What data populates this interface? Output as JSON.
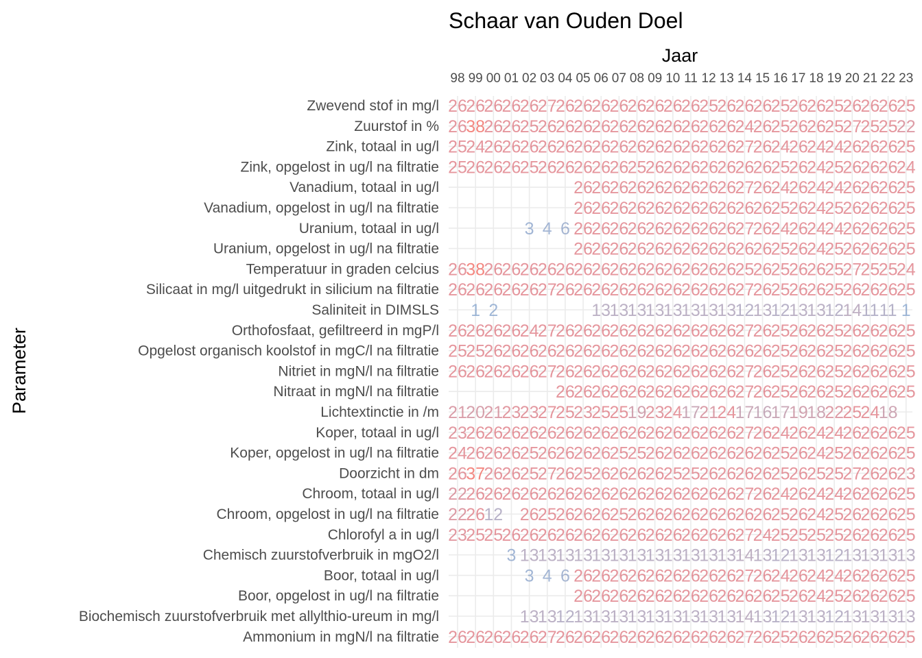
{
  "chart_data": {
    "type": "table",
    "title": "Schaar van Ouden Doel",
    "xlabel": "Jaar",
    "ylabel": "Parameter",
    "columns": [
      "98",
      "99",
      "00",
      "01",
      "02",
      "03",
      "04",
      "05",
      "06",
      "07",
      "08",
      "09",
      "10",
      "11",
      "12",
      "13",
      "14",
      "15",
      "16",
      "17",
      "18",
      "19",
      "20",
      "21",
      "22",
      "23"
    ],
    "color_scale": {
      "low": "#7a9cc9",
      "mid": "#a793ad",
      "high": "#dc6e78",
      "max": "#f05a50"
    },
    "rows": [
      {
        "label": "Zwevend stof in mg/l",
        "values": [
          26,
          26,
          26,
          26,
          26,
          27,
          26,
          26,
          26,
          26,
          26,
          26,
          26,
          26,
          25,
          26,
          26,
          26,
          25,
          26,
          26,
          25,
          26,
          26,
          26,
          25
        ]
      },
      {
        "label": "Zuurstof in %",
        "values": [
          26,
          38,
          26,
          26,
          25,
          26,
          26,
          26,
          26,
          26,
          26,
          26,
          26,
          26,
          26,
          26,
          24,
          26,
          25,
          26,
          26,
          25,
          27,
          25,
          25,
          22
        ]
      },
      {
        "label": "Zink, totaal in ug/l",
        "values": [
          25,
          24,
          26,
          26,
          26,
          26,
          26,
          26,
          26,
          26,
          26,
          26,
          26,
          26,
          26,
          26,
          27,
          26,
          24,
          26,
          24,
          24,
          26,
          26,
          26,
          25
        ]
      },
      {
        "label": "Zink, opgelost in ug/l na filtratie",
        "values": [
          25,
          26,
          26,
          26,
          25,
          26,
          26,
          26,
          26,
          26,
          25,
          26,
          26,
          26,
          26,
          26,
          26,
          26,
          25,
          26,
          24,
          25,
          26,
          26,
          26,
          24
        ]
      },
      {
        "label": "Vanadium, totaal in ug/l",
        "values": [
          null,
          null,
          null,
          null,
          null,
          null,
          null,
          26,
          26,
          26,
          26,
          26,
          26,
          26,
          26,
          26,
          27,
          26,
          24,
          26,
          24,
          24,
          26,
          26,
          26,
          25
        ]
      },
      {
        "label": "Vanadium, opgelost in ug/l na filtratie",
        "values": [
          null,
          null,
          null,
          null,
          null,
          null,
          null,
          26,
          26,
          26,
          26,
          26,
          26,
          26,
          26,
          26,
          26,
          26,
          25,
          26,
          24,
          25,
          26,
          26,
          26,
          25
        ]
      },
      {
        "label": "Uranium, totaal in ug/l",
        "values": [
          null,
          null,
          null,
          null,
          3,
          4,
          6,
          26,
          26,
          26,
          26,
          26,
          26,
          26,
          26,
          26,
          27,
          26,
          24,
          26,
          24,
          24,
          26,
          26,
          26,
          25
        ]
      },
      {
        "label": "Uranium, opgelost in ug/l na filtratie",
        "values": [
          null,
          null,
          null,
          null,
          null,
          null,
          null,
          26,
          26,
          26,
          26,
          26,
          26,
          26,
          26,
          26,
          26,
          26,
          25,
          26,
          24,
          25,
          26,
          26,
          26,
          25
        ]
      },
      {
        "label": "Temperatuur in graden celcius",
        "values": [
          26,
          38,
          26,
          26,
          26,
          26,
          26,
          26,
          26,
          26,
          26,
          26,
          26,
          26,
          26,
          26,
          25,
          26,
          25,
          26,
          26,
          25,
          27,
          25,
          25,
          24
        ]
      },
      {
        "label": "Silicaat in mg/l uitgedrukt in silicium na filtratie",
        "values": [
          26,
          26,
          26,
          26,
          26,
          27,
          26,
          26,
          26,
          26,
          26,
          26,
          26,
          26,
          26,
          26,
          27,
          26,
          25,
          26,
          26,
          25,
          26,
          26,
          26,
          25
        ]
      },
      {
        "label": "Saliniteit in DIMSLS",
        "values": [
          null,
          1,
          2,
          null,
          null,
          null,
          null,
          null,
          13,
          13,
          13,
          13,
          13,
          13,
          13,
          13,
          12,
          13,
          12,
          13,
          13,
          12,
          14,
          11,
          11,
          1
        ]
      },
      {
        "label": "Orthofosfaat, gefiltreerd in mgP/l",
        "values": [
          26,
          26,
          26,
          26,
          24,
          27,
          26,
          26,
          26,
          26,
          26,
          26,
          26,
          26,
          26,
          26,
          27,
          26,
          25,
          26,
          26,
          25,
          26,
          26,
          26,
          25
        ]
      },
      {
        "label": "Opgelost organisch koolstof in mgC/l na filtratie",
        "values": [
          25,
          25,
          26,
          26,
          26,
          26,
          26,
          26,
          26,
          26,
          26,
          26,
          26,
          26,
          26,
          26,
          26,
          26,
          25,
          26,
          26,
          25,
          26,
          26,
          26,
          25
        ]
      },
      {
        "label": "Nitriet in mgN/l na filtratie",
        "values": [
          26,
          26,
          26,
          26,
          26,
          27,
          26,
          26,
          26,
          26,
          26,
          26,
          26,
          26,
          26,
          26,
          27,
          26,
          25,
          26,
          26,
          25,
          26,
          26,
          26,
          25
        ]
      },
      {
        "label": "Nitraat in mgN/l na filtratie",
        "values": [
          null,
          null,
          null,
          null,
          null,
          null,
          26,
          26,
          26,
          26,
          26,
          26,
          26,
          26,
          26,
          26,
          27,
          26,
          25,
          26,
          26,
          25,
          26,
          26,
          26,
          25
        ]
      },
      {
        "label": "Lichtextinctie in /m",
        "values": [
          21,
          20,
          21,
          23,
          23,
          27,
          25,
          23,
          25,
          25,
          19,
          23,
          24,
          17,
          21,
          24,
          17,
          16,
          17,
          19,
          18,
          22,
          25,
          24,
          18,
          null
        ]
      },
      {
        "label": "Koper, totaal in ug/l",
        "values": [
          23,
          26,
          26,
          26,
          26,
          26,
          26,
          26,
          26,
          26,
          26,
          26,
          26,
          26,
          26,
          26,
          27,
          26,
          24,
          26,
          24,
          24,
          26,
          26,
          26,
          25
        ]
      },
      {
        "label": "Koper, opgelost in ug/l na filtratie",
        "values": [
          24,
          26,
          26,
          26,
          25,
          26,
          26,
          26,
          26,
          25,
          25,
          26,
          26,
          26,
          26,
          26,
          26,
          26,
          25,
          26,
          24,
          25,
          26,
          26,
          26,
          25
        ]
      },
      {
        "label": "Doorzicht in dm",
        "values": [
          26,
          37,
          26,
          26,
          25,
          27,
          26,
          25,
          26,
          26,
          26,
          26,
          25,
          25,
          26,
          26,
          26,
          26,
          25,
          26,
          25,
          25,
          27,
          26,
          26,
          23
        ]
      },
      {
        "label": "Chroom, totaal in ug/l",
        "values": [
          22,
          26,
          26,
          26,
          26,
          26,
          26,
          26,
          26,
          26,
          26,
          26,
          26,
          26,
          26,
          26,
          27,
          26,
          24,
          26,
          24,
          24,
          26,
          26,
          26,
          25
        ]
      },
      {
        "label": "Chroom, opgelost in ug/l na filtratie",
        "values": [
          22,
          26,
          12,
          null,
          26,
          25,
          26,
          26,
          26,
          25,
          26,
          26,
          26,
          26,
          26,
          26,
          26,
          26,
          25,
          26,
          24,
          25,
          26,
          26,
          26,
          25
        ]
      },
      {
        "label": "Chlorofyl a in ug/l",
        "values": [
          23,
          25,
          25,
          26,
          26,
          26,
          26,
          26,
          26,
          26,
          26,
          26,
          26,
          26,
          26,
          26,
          27,
          24,
          25,
          25,
          25,
          25,
          26,
          26,
          26,
          25
        ]
      },
      {
        "label": "Chemisch zuurstofverbruik in mgO2/l",
        "values": [
          null,
          null,
          null,
          3,
          13,
          13,
          13,
          13,
          13,
          13,
          13,
          13,
          13,
          13,
          13,
          13,
          14,
          13,
          12,
          13,
          13,
          12,
          13,
          13,
          13,
          13
        ]
      },
      {
        "label": "Boor, totaal in ug/l",
        "values": [
          null,
          null,
          null,
          null,
          3,
          4,
          6,
          26,
          26,
          26,
          26,
          26,
          26,
          26,
          26,
          26,
          27,
          26,
          24,
          26,
          24,
          24,
          26,
          26,
          26,
          25
        ]
      },
      {
        "label": "Boor, opgelost in ug/l na filtratie",
        "values": [
          null,
          null,
          null,
          null,
          null,
          null,
          null,
          26,
          26,
          26,
          26,
          26,
          26,
          26,
          26,
          26,
          26,
          26,
          25,
          26,
          24,
          25,
          26,
          26,
          26,
          25
        ]
      },
      {
        "label": "Biochemisch zuurstofverbruik met allylthio-ureum in mg/l",
        "values": [
          null,
          null,
          null,
          null,
          13,
          13,
          12,
          13,
          13,
          13,
          13,
          13,
          13,
          13,
          13,
          13,
          14,
          13,
          12,
          13,
          13,
          12,
          13,
          13,
          13,
          13
        ]
      },
      {
        "label": "Ammonium in mgN/l na filtratie",
        "values": [
          26,
          26,
          26,
          26,
          26,
          27,
          26,
          26,
          26,
          26,
          26,
          26,
          26,
          26,
          26,
          26,
          27,
          26,
          25,
          26,
          26,
          25,
          26,
          26,
          26,
          25
        ]
      }
    ]
  }
}
